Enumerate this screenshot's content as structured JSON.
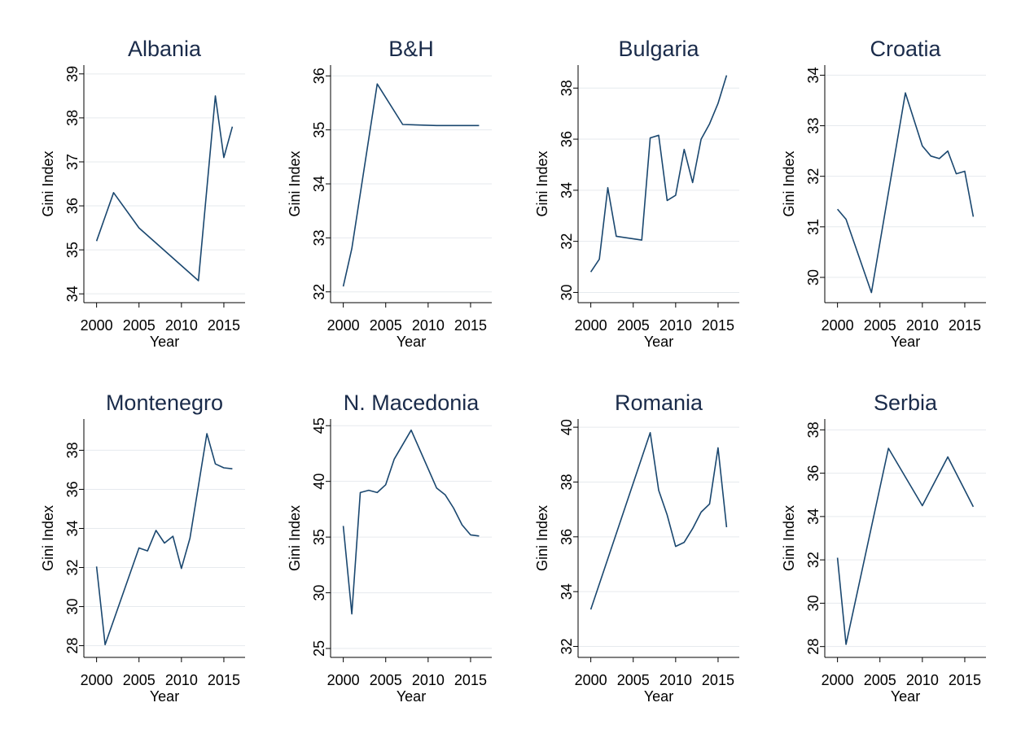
{
  "colors": {
    "series": "#1a476f",
    "grid": "#e6eaee"
  },
  "chart_data": [
    {
      "type": "line",
      "title": "Albania",
      "xlabel": "Year",
      "ylabel": "Gini Index",
      "xlim": [
        1998.5,
        2017.5
      ],
      "xticks": [
        2000,
        2005,
        2010,
        2015
      ],
      "ylim": [
        33.8,
        39.2
      ],
      "yticks": [
        34,
        35,
        36,
        37,
        38,
        39
      ],
      "x": [
        2000,
        2002,
        2005,
        2012,
        2014,
        2015,
        2016
      ],
      "y": [
        35.2,
        36.3,
        35.5,
        34.3,
        38.5,
        37.1,
        37.8
      ]
    },
    {
      "type": "line",
      "title": "B&H",
      "xlabel": "Year",
      "ylabel": "Gini Index",
      "xlim": [
        1998.5,
        2017.5
      ],
      "xticks": [
        2000,
        2005,
        2010,
        2015
      ],
      "ylim": [
        31.8,
        36.2
      ],
      "yticks": [
        32,
        33,
        34,
        35,
        36
      ],
      "x": [
        2000,
        2001,
        2004,
        2007,
        2011,
        2016
      ],
      "y": [
        32.1,
        32.8,
        35.85,
        35.1,
        35.08,
        35.08
      ]
    },
    {
      "type": "line",
      "title": "Bulgaria",
      "xlabel": "Year",
      "ylabel": "Gini Index",
      "xlim": [
        1998.5,
        2017.5
      ],
      "xticks": [
        2000,
        2005,
        2010,
        2015
      ],
      "ylim": [
        29.6,
        38.9
      ],
      "yticks": [
        30,
        32,
        34,
        36,
        38
      ],
      "x": [
        2000,
        2001,
        2002,
        2003,
        2006,
        2007,
        2008,
        2009,
        2010,
        2011,
        2012,
        2013,
        2014,
        2015,
        2016
      ],
      "y": [
        30.8,
        31.3,
        34.1,
        32.2,
        32.05,
        36.05,
        36.15,
        33.6,
        33.8,
        35.6,
        34.3,
        36.0,
        36.6,
        37.4,
        38.5
      ]
    },
    {
      "type": "line",
      "title": "Croatia",
      "xlabel": "Year",
      "ylabel": "Gini Index",
      "xlim": [
        1998.5,
        2017.5
      ],
      "xticks": [
        2000,
        2005,
        2010,
        2015
      ],
      "ylim": [
        29.5,
        34.2
      ],
      "yticks": [
        30,
        31,
        32,
        33,
        34
      ],
      "x": [
        2000,
        2001,
        2004,
        2008,
        2010,
        2011,
        2012,
        2013,
        2014,
        2015,
        2016
      ],
      "y": [
        31.35,
        31.15,
        29.7,
        33.65,
        32.6,
        32.4,
        32.35,
        32.5,
        32.05,
        32.1,
        31.2
      ]
    },
    {
      "type": "line",
      "title": "Montenegro",
      "xlabel": "Year",
      "ylabel": "Gini Index",
      "xlim": [
        1998.5,
        2017.5
      ],
      "xticks": [
        2000,
        2005,
        2010,
        2015
      ],
      "ylim": [
        27.4,
        39.6
      ],
      "yticks": [
        28,
        30,
        32,
        34,
        36,
        38
      ],
      "x": [
        2000,
        2001,
        2005,
        2006,
        2007,
        2008,
        2009,
        2010,
        2011,
        2013,
        2014,
        2015,
        2016
      ],
      "y": [
        32.05,
        28.05,
        33.0,
        32.85,
        33.9,
        33.25,
        33.6,
        31.95,
        33.5,
        38.85,
        37.3,
        37.1,
        37.05
      ]
    },
    {
      "type": "line",
      "title": "N. Macedonia",
      "xlabel": "Year",
      "ylabel": "Gini Index",
      "xlim": [
        1998.5,
        2017.5
      ],
      "xticks": [
        2000,
        2005,
        2010,
        2015
      ],
      "ylim": [
        24.2,
        45.6
      ],
      "yticks": [
        25,
        30,
        35,
        40,
        45
      ],
      "x": [
        2000,
        2001,
        2002,
        2003,
        2004,
        2005,
        2006,
        2008,
        2011,
        2012,
        2013,
        2014,
        2015,
        2016
      ],
      "y": [
        36.0,
        28.1,
        39.0,
        39.2,
        39.0,
        39.7,
        42.0,
        44.6,
        39.4,
        38.8,
        37.6,
        36.1,
        35.2,
        35.1
      ]
    },
    {
      "type": "line",
      "title": "Romania",
      "xlabel": "Year",
      "ylabel": "Gini Index",
      "xlim": [
        1998.5,
        2017.5
      ],
      "xticks": [
        2000,
        2005,
        2010,
        2015
      ],
      "ylim": [
        31.6,
        40.3
      ],
      "yticks": [
        32,
        34,
        36,
        38,
        40
      ],
      "x": [
        2000,
        2007,
        2008,
        2009,
        2010,
        2011,
        2012,
        2013,
        2014,
        2015,
        2016
      ],
      "y": [
        33.35,
        39.8,
        37.7,
        36.8,
        35.65,
        35.8,
        36.3,
        36.9,
        37.2,
        39.25,
        36.35
      ]
    },
    {
      "type": "line",
      "title": "Serbia",
      "xlabel": "Year",
      "ylabel": "Gini Index",
      "xlim": [
        1998.5,
        2017.5
      ],
      "xticks": [
        2000,
        2005,
        2010,
        2015
      ],
      "ylim": [
        27.5,
        38.5
      ],
      "yticks": [
        28,
        30,
        32,
        34,
        36,
        38
      ],
      "x": [
        2000,
        2001,
        2006,
        2010,
        2013,
        2016
      ],
      "y": [
        32.1,
        28.1,
        37.15,
        34.5,
        36.75,
        34.45
      ]
    }
  ]
}
